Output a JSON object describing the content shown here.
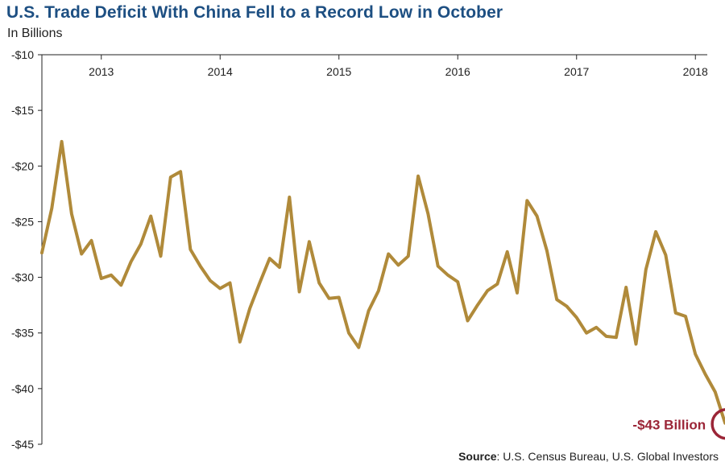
{
  "chart_data": {
    "type": "line",
    "title": "U.S. Trade Deficit With China Fell to a Record Low in October",
    "subtitle": "In Billions",
    "ylim": [
      -45,
      -10
    ],
    "yticks": [
      "-$10",
      "-$15",
      "-$20",
      "-$25",
      "-$30",
      "-$35",
      "-$40",
      "-$45"
    ],
    "ytick_values": [
      -10,
      -15,
      -20,
      -25,
      -30,
      -35,
      -40,
      -45
    ],
    "xticks": [
      "2013",
      "2014",
      "2015",
      "2016",
      "2017",
      "2018"
    ],
    "xtick_values": [
      2013,
      2014,
      2015,
      2016,
      2017,
      2018
    ],
    "x_start": 2012.5,
    "x_step": 0.0833333,
    "series": [
      {
        "color": "#b08a3a",
        "values": [
          -27.8,
          -23.8,
          -17.8,
          -24.3,
          -27.9,
          -26.7,
          -30.1,
          -29.8,
          -30.7,
          -28.6,
          -27.0,
          -24.5,
          -28.1,
          -21.0,
          -20.5,
          -27.5,
          -29.0,
          -30.3,
          -31.0,
          -30.5,
          -35.8,
          -32.8,
          -30.5,
          -28.3,
          -29.1,
          -22.8,
          -31.3,
          -26.8,
          -30.5,
          -31.9,
          -31.8,
          -35.0,
          -36.3,
          -33.0,
          -31.2,
          -27.9,
          -28.9,
          -28.1,
          -20.9,
          -24.3,
          -29.0,
          -29.8,
          -30.4,
          -33.9,
          -32.5,
          -31.2,
          -30.6,
          -27.7,
          -31.4,
          -23.1,
          -24.5,
          -27.6,
          -32.0,
          -32.6,
          -33.6,
          -35.0,
          -34.5,
          -35.3,
          -35.4,
          -30.9,
          -36.0,
          -29.3,
          -25.9,
          -28.0,
          -33.2,
          -33.5,
          -36.9,
          -38.7,
          -40.3,
          -43.1
        ]
      }
    ],
    "annotation": {
      "label": "-$43 Billion",
      "color": "#9b2537"
    }
  },
  "source": {
    "label": "Source",
    "text": ": U.S. Census Bureau, U.S. Global Investors"
  }
}
